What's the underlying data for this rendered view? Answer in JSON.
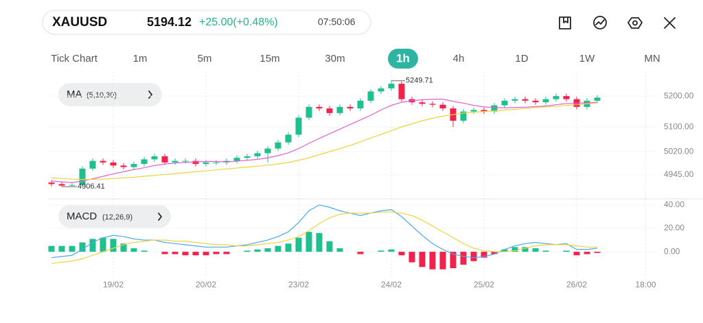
{
  "header": {
    "symbol": "XAUUSD",
    "price": "5194.12",
    "change": "+25.00(+0.48%)",
    "time": "07:50:06"
  },
  "timeframes": {
    "items": [
      "Tick Chart",
      "1m",
      "5m",
      "15m",
      "30m",
      "1h",
      "4h",
      "1D",
      "1W",
      "MN"
    ],
    "active": 5
  },
  "indicators": {
    "ma": {
      "name": "MA",
      "params": "(5,10,30)"
    },
    "macd": {
      "name": "MACD",
      "params": "(12,26,9)"
    }
  },
  "chart_data": [
    {
      "type": "candlestick",
      "up_color": "#1fbf8f",
      "down_color": "#f2234b",
      "grid": true,
      "xlim": [
        -0.5,
        58.5
      ],
      "ylim": [
        4867,
        5278
      ],
      "yticks": [
        {
          "value": 5200,
          "label": "5200.00"
        },
        {
          "value": 5100,
          "label": "5100.00"
        },
        {
          "value": 5020,
          "label": "5020.00"
        },
        {
          "value": 4945,
          "label": "4945.00"
        }
      ],
      "open": [
        4920,
        4915,
        4910,
        4912,
        4965,
        4990,
        4985,
        4975,
        4970,
        4980,
        4995,
        5005,
        4985,
        4990,
        4990,
        4980,
        4985,
        4985,
        4990,
        5000,
        5005,
        5015,
        5030,
        5050,
        5075,
        5130,
        5165,
        5160,
        5145,
        5165,
        5160,
        5185,
        5215,
        5225,
        5240,
        5190,
        5180,
        5175,
        5172,
        5160,
        5120,
        5150,
        5155,
        5150,
        5170,
        5185,
        5190,
        5185,
        5180,
        5190,
        5200,
        5190,
        5165,
        5185
      ],
      "high": [
        4928,
        4923,
        4920,
        4973,
        4998,
        4998,
        4993,
        4983,
        4988,
        5003,
        5013,
        5013,
        4998,
        4998,
        4998,
        4993,
        4993,
        4998,
        5008,
        5013,
        5023,
        5038,
        5058,
        5083,
        5138,
        5173,
        5173,
        5168,
        5173,
        5173,
        5193,
        5223,
        5233,
        5249.71,
        5248,
        5198,
        5188,
        5183,
        5180,
        5168,
        5158,
        5163,
        5163,
        5178,
        5193,
        5198,
        5198,
        5193,
        5198,
        5208,
        5208,
        5198,
        5193,
        5203
      ],
      "low": [
        4907,
        4906.41,
        4908,
        4909,
        4957,
        4977,
        4967,
        4962,
        4962,
        4972,
        4987,
        4977,
        4977,
        4982,
        4972,
        4972,
        4977,
        4977,
        4982,
        4992,
        4997,
        4985,
        5022,
        5042,
        5067,
        5122,
        5152,
        5137,
        5137,
        5152,
        5152,
        5177,
        5207,
        5217,
        5182,
        5172,
        5167,
        5164,
        5152,
        5100,
        5112,
        5142,
        5142,
        5142,
        5162,
        5177,
        5177,
        5172,
        5172,
        5182,
        5182,
        5157,
        5157,
        5177
      ],
      "close": [
        4915,
        4910,
        4912,
        4965,
        4990,
        4985,
        4975,
        4970,
        4980,
        4995,
        5005,
        4985,
        4990,
        4990,
        4980,
        4985,
        4985,
        4990,
        5000,
        5005,
        5015,
        5030,
        5050,
        5075,
        5130,
        5165,
        5160,
        5145,
        5165,
        5160,
        5185,
        5215,
        5225,
        5240,
        5190,
        5180,
        5175,
        5172,
        5160,
        5120,
        5150,
        5155,
        5150,
        5170,
        5185,
        5190,
        5185,
        5180,
        5190,
        5200,
        5190,
        5165,
        5185,
        5195
      ],
      "lines": [
        {
          "color": "#e060d4",
          "values": [
            4925,
            4922,
            4920,
            4925,
            4932,
            4940,
            4948,
            4955,
            4962,
            4968,
            4975,
            4980,
            4983,
            4985,
            4987,
            4988,
            4988,
            4987,
            4989,
            4992,
            4995,
            5000,
            5007,
            5016,
            5030,
            5047,
            5063,
            5078,
            5093,
            5108,
            5123,
            5138,
            5155,
            5170,
            5180,
            5185,
            5188,
            5190,
            5190,
            5183,
            5177,
            5170,
            5165,
            5163,
            5162,
            5163,
            5164,
            5166,
            5168,
            5172,
            5176,
            5177,
            5178,
            5180
          ]
        },
        {
          "color": "#efd23c",
          "values": [
            4935,
            4933,
            4931,
            4930,
            4930,
            4931,
            4933,
            4935,
            4937,
            4940,
            4943,
            4946,
            4949,
            4952,
            4955,
            4958,
            4961,
            4964,
            4967,
            4970,
            4973,
            4976,
            4980,
            4985,
            4992,
            5000,
            5010,
            5020,
            5030,
            5040,
            5052,
            5064,
            5076,
            5088,
            5100,
            5110,
            5120,
            5128,
            5135,
            5140,
            5145,
            5148,
            5150,
            5152,
            5155,
            5157,
            5160,
            5163,
            5165,
            5167,
            5170,
            5172,
            5175,
            5178
          ]
        }
      ]
    },
    {
      "type": "macd",
      "up_color": "#1fbf8f",
      "down_color": "#f2234b",
      "grid": true,
      "xlim": [
        -0.5,
        58.5
      ],
      "ylim": [
        -21,
        44
      ],
      "yticks": [
        {
          "value": 40,
          "label": "40.00"
        },
        {
          "value": 20,
          "label": "20.00"
        },
        {
          "value": 0,
          "label": "0.00"
        }
      ],
      "xticks": [
        {
          "value": 6,
          "label": "19/02"
        },
        {
          "value": 15,
          "label": "20/02"
        },
        {
          "value": 24,
          "label": "23/02"
        },
        {
          "value": 33,
          "label": "24/02"
        },
        {
          "value": 42,
          "label": "25/02"
        },
        {
          "value": 51,
          "label": "26/02"
        },
        {
          "value": 57.7,
          "label": "18:00"
        }
      ],
      "histogram": [
        5,
        5,
        5,
        8,
        11,
        12,
        11,
        7,
        3,
        1,
        0,
        -2,
        -2,
        -3,
        -3,
        -3,
        -2,
        -2,
        0,
        1,
        2,
        3,
        5,
        7,
        12,
        17,
        16,
        9,
        3,
        0,
        -2,
        0,
        1,
        2,
        -3,
        -9,
        -13,
        -15,
        -15,
        -14,
        -11,
        -8,
        -5,
        -2,
        2,
        4,
        4,
        3,
        1,
        0,
        1,
        -3,
        -2,
        -1
      ],
      "lines": [
        {
          "color": "#4aa8ef",
          "values": [
            -5,
            -4,
            -3,
            2,
            8,
            12,
            14,
            13,
            11,
            10,
            10,
            8,
            7,
            6,
            5,
            4,
            4,
            4,
            5,
            6,
            8,
            10,
            13,
            17,
            25,
            35,
            40,
            38,
            35,
            33,
            31,
            33,
            35,
            36,
            30,
            22,
            14,
            7,
            2,
            -2,
            -4,
            -5,
            -4,
            -2,
            2,
            5,
            7,
            8,
            7,
            6,
            7,
            2,
            2,
            3
          ]
        },
        {
          "color": "#efd23c",
          "values": [
            -10,
            -9,
            -8,
            -6,
            -3,
            0,
            3,
            6,
            8,
            9,
            10,
            10,
            9,
            9,
            8,
            7,
            6,
            6,
            5,
            5,
            6,
            7,
            8,
            10,
            13,
            18,
            24,
            29,
            32,
            33,
            33,
            33,
            34,
            34,
            33,
            31,
            27,
            22,
            17,
            12,
            7,
            3,
            1,
            0,
            0,
            1,
            3,
            5,
            6,
            6,
            6,
            5,
            4,
            4
          ]
        }
      ]
    }
  ]
}
